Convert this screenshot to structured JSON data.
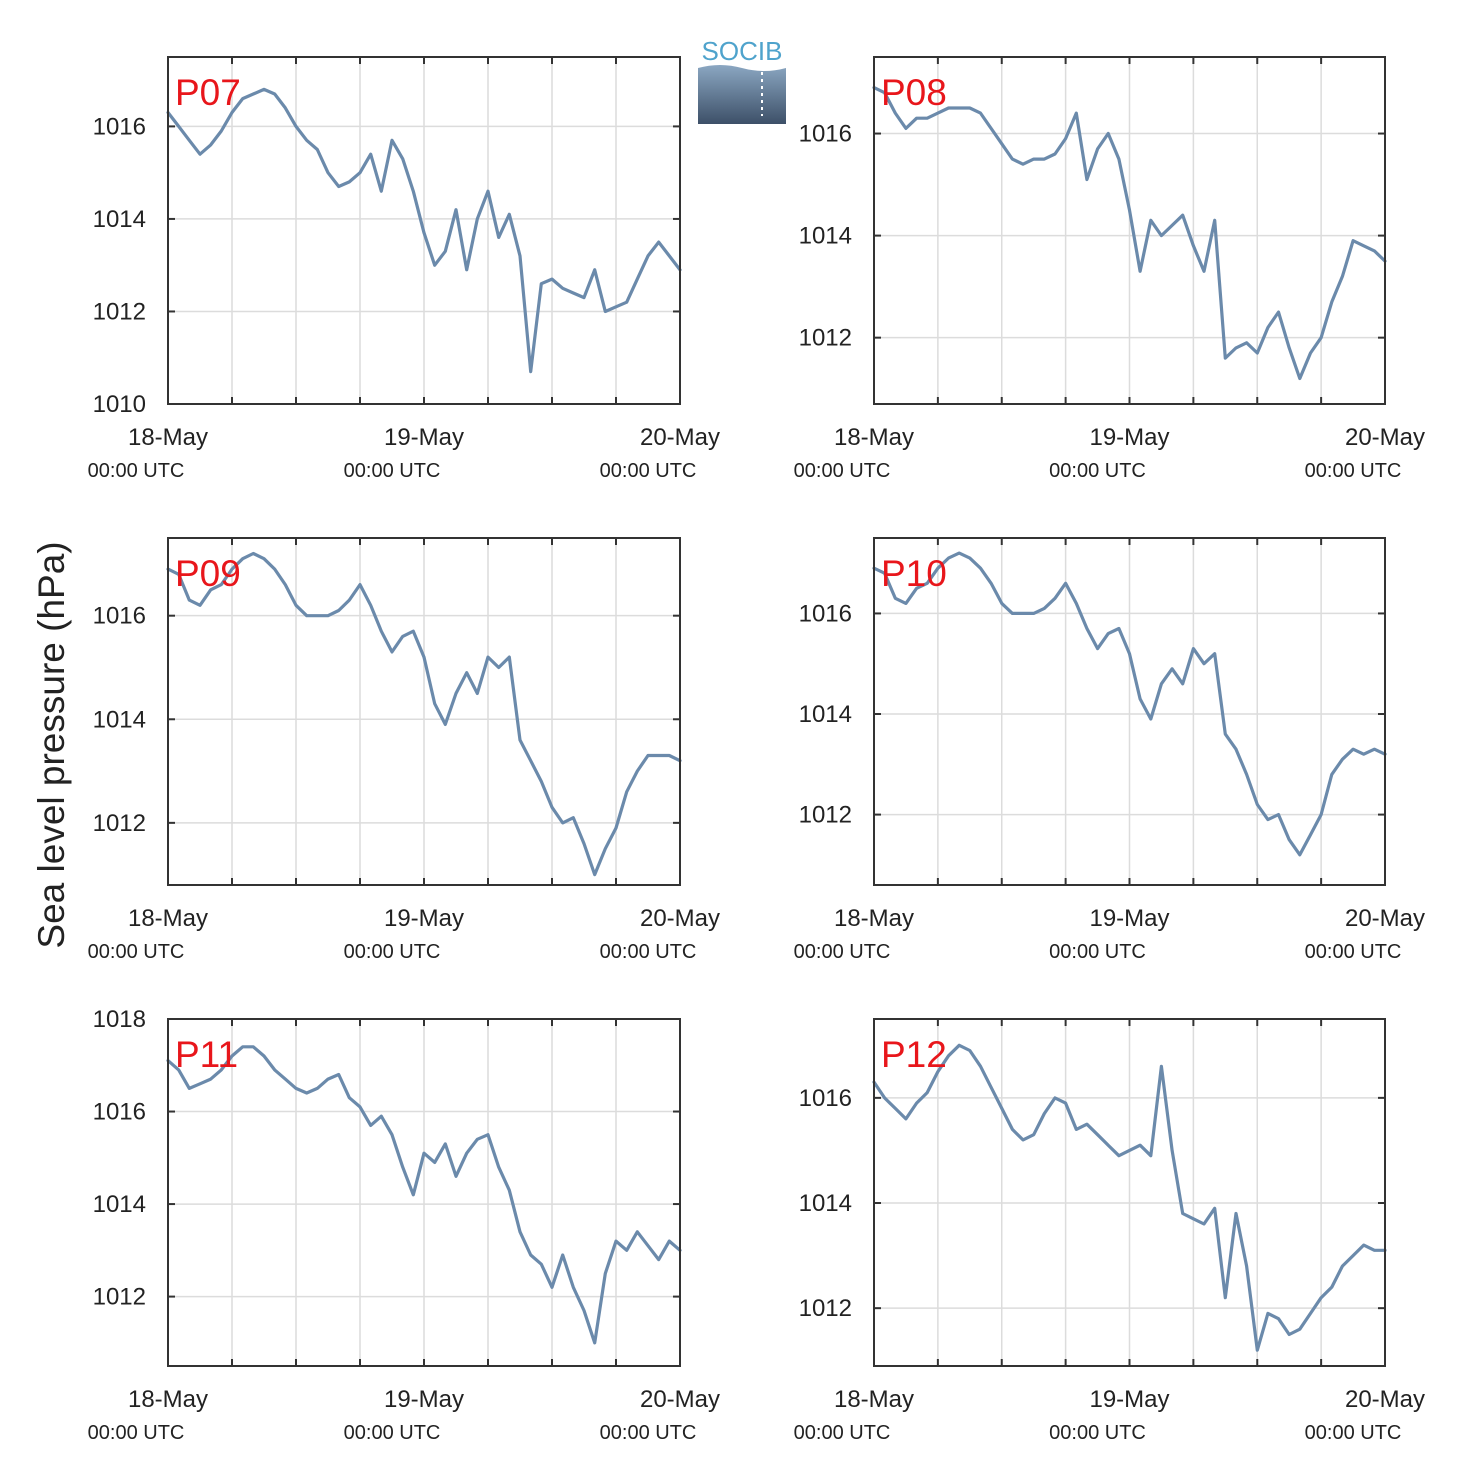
{
  "figure": {
    "ylabel": "Sea level pressure (hPa)",
    "logo_text": "SOCIB",
    "x_tick_labels": [
      {
        "date": "18-May",
        "time": "00:00 UTC"
      },
      {
        "date": "19-May",
        "time": "00:00 UTC"
      },
      {
        "date": "20-May",
        "time": "00:00 UTC"
      }
    ],
    "line_color": "#6b8aab",
    "station_label_color": "#e8161b",
    "grid": true
  },
  "chart_data": [
    {
      "type": "line",
      "station": "P07",
      "xlim": [
        0,
        48
      ],
      "ylim": [
        1010,
        1017.5
      ],
      "yticks": [
        1010,
        1012,
        1014,
        1016
      ],
      "x": [
        0,
        1,
        2,
        3,
        4,
        5,
        6,
        7,
        8,
        9,
        10,
        11,
        12,
        13,
        14,
        15,
        16,
        17,
        18,
        19,
        20,
        21,
        22,
        23,
        24,
        25,
        26,
        27,
        28,
        29,
        30,
        31,
        32,
        33,
        34,
        35,
        36,
        37,
        38,
        39,
        40,
        41,
        42,
        43,
        44,
        45,
        46,
        47,
        48
      ],
      "values": [
        1016.3,
        1016.0,
        1015.7,
        1015.4,
        1015.6,
        1015.9,
        1016.3,
        1016.6,
        1016.7,
        1016.8,
        1016.7,
        1016.4,
        1016.0,
        1015.7,
        1015.5,
        1015.0,
        1014.7,
        1014.8,
        1015.0,
        1015.4,
        1014.6,
        1015.7,
        1015.3,
        1014.6,
        1013.7,
        1013.0,
        1013.3,
        1014.2,
        1012.9,
        1014.0,
        1014.6,
        1013.6,
        1014.1,
        1013.2,
        1010.7,
        1012.6,
        1012.7,
        1012.5,
        1012.4,
        1012.3,
        1012.9,
        1012.0,
        1012.1,
        1012.2,
        1012.7,
        1013.2,
        1013.5,
        1013.2,
        1012.9
      ]
    },
    {
      "type": "line",
      "station": "P08",
      "xlim": [
        0,
        48
      ],
      "ylim": [
        1010.7,
        1017.5
      ],
      "yticks": [
        1012,
        1014,
        1016
      ],
      "x": [
        0,
        1,
        2,
        3,
        4,
        5,
        6,
        7,
        8,
        9,
        10,
        11,
        12,
        13,
        14,
        15,
        16,
        17,
        18,
        19,
        20,
        21,
        22,
        23,
        24,
        25,
        26,
        27,
        28,
        29,
        30,
        31,
        32,
        33,
        34,
        35,
        36,
        37,
        38,
        39,
        40,
        41,
        42,
        43,
        44,
        45,
        46,
        47,
        48
      ],
      "values": [
        1016.9,
        1016.8,
        1016.4,
        1016.1,
        1016.3,
        1016.3,
        1016.4,
        1016.5,
        1016.5,
        1016.5,
        1016.4,
        1016.1,
        1015.8,
        1015.5,
        1015.4,
        1015.5,
        1015.5,
        1015.6,
        1015.9,
        1016.4,
        1015.1,
        1015.7,
        1016.0,
        1015.5,
        1014.5,
        1013.3,
        1014.3,
        1014.0,
        1014.2,
        1014.4,
        1013.8,
        1013.3,
        1014.3,
        1011.6,
        1011.8,
        1011.9,
        1011.7,
        1012.2,
        1012.5,
        1011.8,
        1011.2,
        1011.7,
        1012.0,
        1012.7,
        1013.2,
        1013.9,
        1013.8,
        1013.7,
        1013.5
      ]
    },
    {
      "type": "line",
      "station": "P09",
      "xlim": [
        0,
        48
      ],
      "ylim": [
        1010.8,
        1017.5
      ],
      "yticks": [
        1012,
        1014,
        1016
      ],
      "x": [
        0,
        1,
        2,
        3,
        4,
        5,
        6,
        7,
        8,
        9,
        10,
        11,
        12,
        13,
        14,
        15,
        16,
        17,
        18,
        19,
        20,
        21,
        22,
        23,
        24,
        25,
        26,
        27,
        28,
        29,
        30,
        31,
        32,
        33,
        34,
        35,
        36,
        37,
        38,
        39,
        40,
        41,
        42,
        43,
        44,
        45,
        46,
        47,
        48
      ],
      "values": [
        1016.9,
        1016.8,
        1016.3,
        1016.2,
        1016.5,
        1016.6,
        1016.9,
        1017.1,
        1017.2,
        1017.1,
        1016.9,
        1016.6,
        1016.2,
        1016.0,
        1016.0,
        1016.0,
        1016.1,
        1016.3,
        1016.6,
        1016.2,
        1015.7,
        1015.3,
        1015.6,
        1015.7,
        1015.2,
        1014.3,
        1013.9,
        1014.5,
        1014.9,
        1014.5,
        1015.2,
        1015.0,
        1015.2,
        1013.6,
        1013.2,
        1012.8,
        1012.3,
        1012.0,
        1012.1,
        1011.6,
        1011.0,
        1011.5,
        1011.9,
        1012.6,
        1013.0,
        1013.3,
        1013.3,
        1013.3,
        1013.2
      ]
    },
    {
      "type": "line",
      "station": "P10",
      "xlim": [
        0,
        48
      ],
      "ylim": [
        1010.6,
        1017.5
      ],
      "yticks": [
        1012,
        1014,
        1016
      ],
      "x": [
        0,
        1,
        2,
        3,
        4,
        5,
        6,
        7,
        8,
        9,
        10,
        11,
        12,
        13,
        14,
        15,
        16,
        17,
        18,
        19,
        20,
        21,
        22,
        23,
        24,
        25,
        26,
        27,
        28,
        29,
        30,
        31,
        32,
        33,
        34,
        35,
        36,
        37,
        38,
        39,
        40,
        41,
        42,
        43,
        44,
        45,
        46,
        47,
        48
      ],
      "values": [
        1016.9,
        1016.8,
        1016.3,
        1016.2,
        1016.5,
        1016.6,
        1016.9,
        1017.1,
        1017.2,
        1017.1,
        1016.9,
        1016.6,
        1016.2,
        1016.0,
        1016.0,
        1016.0,
        1016.1,
        1016.3,
        1016.6,
        1016.2,
        1015.7,
        1015.3,
        1015.6,
        1015.7,
        1015.2,
        1014.3,
        1013.9,
        1014.6,
        1014.9,
        1014.6,
        1015.3,
        1015.0,
        1015.2,
        1013.6,
        1013.3,
        1012.8,
        1012.2,
        1011.9,
        1012.0,
        1011.5,
        1011.2,
        1011.6,
        1012.0,
        1012.8,
        1013.1,
        1013.3,
        1013.2,
        1013.3,
        1013.2
      ]
    },
    {
      "type": "line",
      "station": "P11",
      "xlim": [
        0,
        48
      ],
      "ylim": [
        1010.5,
        1018
      ],
      "yticks": [
        1012,
        1014,
        1016,
        1018
      ],
      "x": [
        0,
        1,
        2,
        3,
        4,
        5,
        6,
        7,
        8,
        9,
        10,
        11,
        12,
        13,
        14,
        15,
        16,
        17,
        18,
        19,
        20,
        21,
        22,
        23,
        24,
        25,
        26,
        27,
        28,
        29,
        30,
        31,
        32,
        33,
        34,
        35,
        36,
        37,
        38,
        39,
        40,
        41,
        42,
        43,
        44,
        45,
        46,
        47,
        48
      ],
      "values": [
        1017.1,
        1016.9,
        1016.5,
        1016.6,
        1016.7,
        1016.9,
        1017.2,
        1017.4,
        1017.4,
        1017.2,
        1016.9,
        1016.7,
        1016.5,
        1016.4,
        1016.5,
        1016.7,
        1016.8,
        1016.3,
        1016.1,
        1015.7,
        1015.9,
        1015.5,
        1014.8,
        1014.2,
        1015.1,
        1014.9,
        1015.3,
        1014.6,
        1015.1,
        1015.4,
        1015.5,
        1014.8,
        1014.3,
        1013.4,
        1012.9,
        1012.7,
        1012.2,
        1012.9,
        1012.2,
        1011.7,
        1011.0,
        1012.5,
        1013.2,
        1013.0,
        1013.4,
        1013.1,
        1012.8,
        1013.2,
        1013.0
      ]
    },
    {
      "type": "line",
      "station": "P12",
      "xlim": [
        0,
        48
      ],
      "ylim": [
        1010.9,
        1017.5
      ],
      "yticks": [
        1012,
        1014,
        1016
      ],
      "x": [
        0,
        1,
        2,
        3,
        4,
        5,
        6,
        7,
        8,
        9,
        10,
        11,
        12,
        13,
        14,
        15,
        16,
        17,
        18,
        19,
        20,
        21,
        22,
        23,
        24,
        25,
        26,
        27,
        28,
        29,
        30,
        31,
        32,
        33,
        34,
        35,
        36,
        37,
        38,
        39,
        40,
        41,
        42,
        43,
        44,
        45,
        46,
        47,
        48
      ],
      "values": [
        1016.3,
        1016.0,
        1015.8,
        1015.6,
        1015.9,
        1016.1,
        1016.5,
        1016.8,
        1017.0,
        1016.9,
        1016.6,
        1016.2,
        1015.8,
        1015.4,
        1015.2,
        1015.3,
        1015.7,
        1016.0,
        1015.9,
        1015.4,
        1015.5,
        1015.3,
        1015.1,
        1014.9,
        1015.0,
        1015.1,
        1014.9,
        1016.6,
        1015.0,
        1013.8,
        1013.7,
        1013.6,
        1013.9,
        1012.2,
        1013.8,
        1012.8,
        1011.2,
        1011.9,
        1011.8,
        1011.5,
        1011.6,
        1011.9,
        1012.2,
        1012.4,
        1012.8,
        1013.0,
        1013.2,
        1013.1,
        1013.1
      ]
    }
  ]
}
